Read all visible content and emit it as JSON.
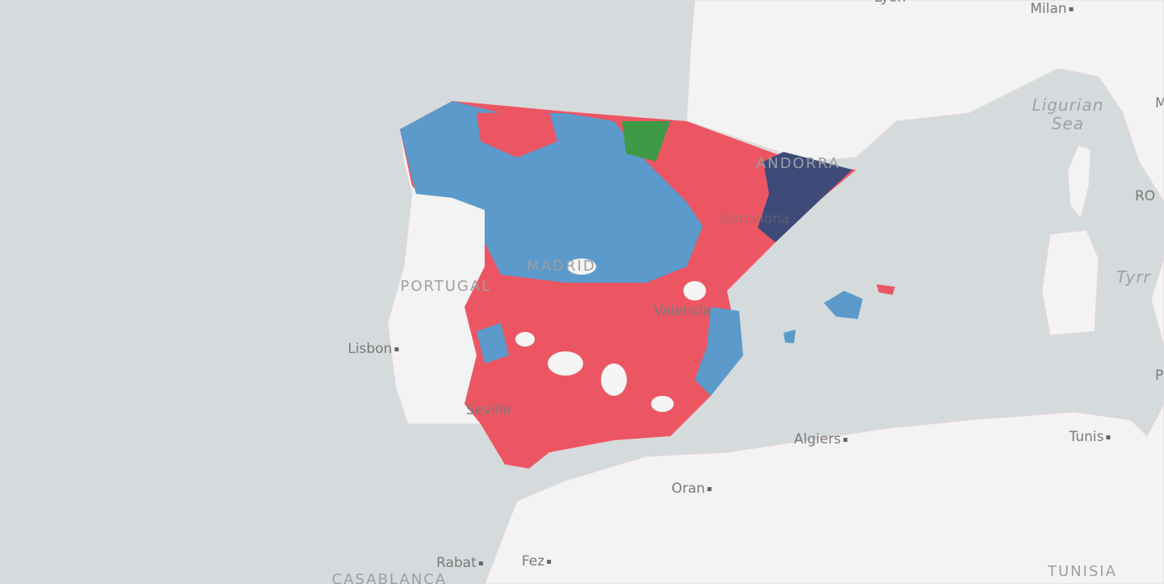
{
  "map": {
    "labels": [
      {
        "text": "Lyon"
      },
      {
        "text": "Milan"
      },
      {
        "text": "Ligurian"
      },
      {
        "text": "Sea"
      },
      {
        "text": "M"
      },
      {
        "text": "RO"
      },
      {
        "text": "Tyrr"
      },
      {
        "text": "P"
      },
      {
        "text": "ANDORRA"
      },
      {
        "text": "Barcelona"
      },
      {
        "text": "PORTUGAL"
      },
      {
        "text": "MADRID"
      },
      {
        "text": "Valencia"
      },
      {
        "text": "Lisbon"
      },
      {
        "text": "Seville"
      },
      {
        "text": "Algiers"
      },
      {
        "text": "Tunis"
      },
      {
        "text": "Oran"
      },
      {
        "text": "Rabat"
      },
      {
        "text": "Fez"
      },
      {
        "text": "CASABLANCA"
      },
      {
        "text": "TUNISIA"
      }
    ]
  }
}
